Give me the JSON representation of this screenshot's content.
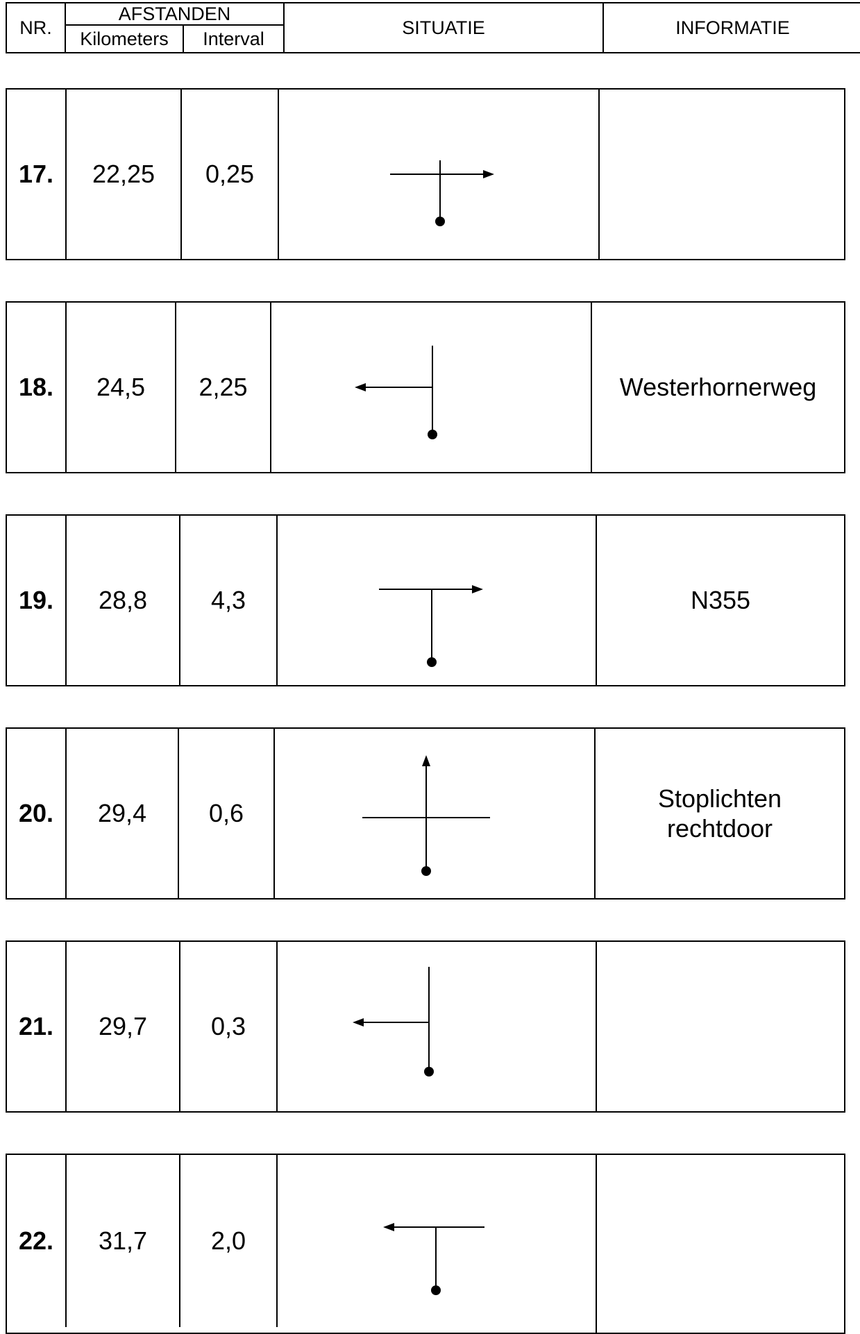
{
  "header": {
    "nr": "NR.",
    "afstanden": "AFSTANDEN",
    "kilometers": "Kilometers",
    "interval": "Interval",
    "situatie": "SITUATIE",
    "informatie": "INFORMATIE"
  },
  "rows": [
    {
      "nr": "17.",
      "kilometers": "22,25",
      "interval": "0,25",
      "situatie": "t-junction-turn-right",
      "informatie": ""
    },
    {
      "nr": "18.",
      "kilometers": "24,5",
      "interval": "2,25",
      "situatie": "side-road-turn-left",
      "informatie": "Westerhornerweg"
    },
    {
      "nr": "19.",
      "kilometers": "28,8",
      "interval": "4,3",
      "situatie": "t-junction-turn-right",
      "informatie": "N355"
    },
    {
      "nr": "20.",
      "kilometers": "29,4",
      "interval": "0,6",
      "situatie": "crossroads-straight-on",
      "informatie": "Stoplichten rechtdoor"
    },
    {
      "nr": "21.",
      "kilometers": "29,7",
      "interval": "0,3",
      "situatie": "side-road-turn-left",
      "informatie": ""
    },
    {
      "nr": "22.",
      "kilometers": "31,7",
      "interval": "2,0",
      "situatie": "t-junction-turn-left",
      "informatie": ""
    }
  ]
}
